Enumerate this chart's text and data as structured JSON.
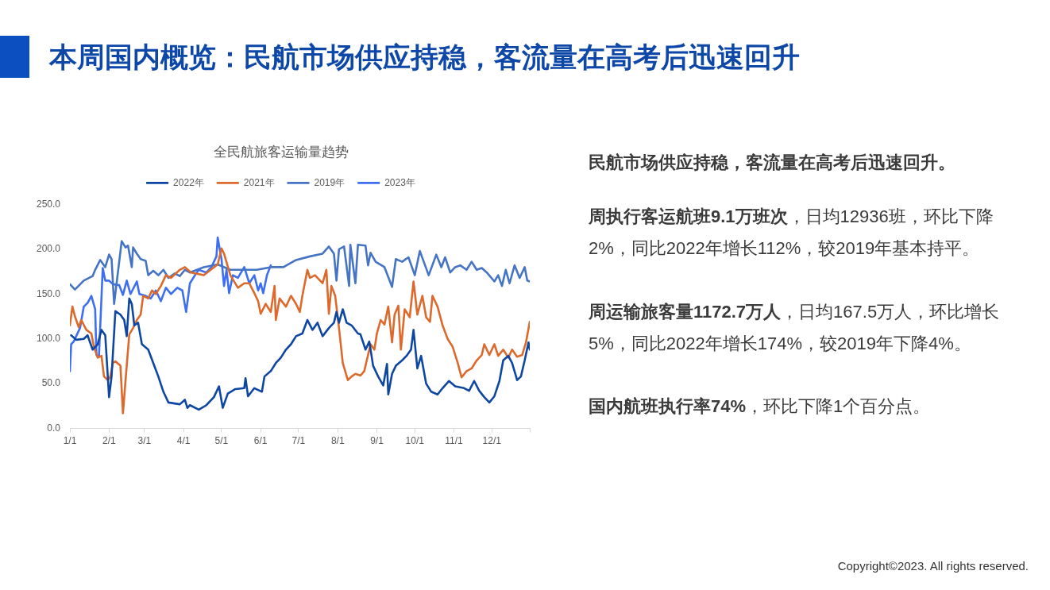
{
  "chart_data": {
    "type": "line",
    "title": "全民航旅客运输量趋势",
    "legend": "top",
    "xlim": [
      "--01-01",
      "--12-31"
    ],
    "xticks": [
      {
        "value": "--01-01",
        "label": "1/1"
      },
      {
        "value": "--02-01",
        "label": "2/1"
      },
      {
        "value": "--03-01",
        "label": "3/1"
      },
      {
        "value": "--04-01",
        "label": "4/1"
      },
      {
        "value": "--05-01",
        "label": "5/1"
      },
      {
        "value": "--06-01",
        "label": "6/1"
      },
      {
        "value": "--07-01",
        "label": "7/1"
      },
      {
        "value": "--08-01",
        "label": "8/1"
      },
      {
        "value": "--09-01",
        "label": "9/1"
      },
      {
        "value": "--10-01",
        "label": "10/1"
      },
      {
        "value": "--11-01",
        "label": "11/1"
      },
      {
        "value": "--12-01",
        "label": "12/1"
      },
      {
        "value": "--12-31",
        "label": null
      }
    ],
    "ylim": [
      0,
      250
    ],
    "yticks": [
      {
        "value": 0,
        "label": "0.0"
      },
      {
        "value": 50,
        "label": "50.0"
      },
      {
        "value": 100,
        "label": "100.0"
      },
      {
        "value": 150,
        "label": "150.0"
      },
      {
        "value": 200,
        "label": "200.0"
      },
      {
        "value": 250,
        "label": "250.0"
      }
    ],
    "series": [
      {
        "name": "2022年",
        "color": "#0e47a1",
        "x": [
          "--01-02",
          "--01-06",
          "--01-12",
          "--01-15",
          "--01-19",
          "--01-23",
          "--01-26",
          "--01-29",
          "--01-31",
          "--02-01",
          "--02-03",
          "--02-06",
          "--02-10",
          "--02-13",
          "--02-15",
          "--02-17",
          "--02-19",
          "--02-21",
          "--02-24",
          "--02-27",
          "--03-04",
          "--03-08",
          "--03-12",
          "--03-16",
          "--03-20",
          "--03-29",
          "--04-02",
          "--04-04",
          "--04-06",
          "--04-13",
          "--04-19",
          "--04-25",
          "--04-29",
          "--05-02",
          "--05-06",
          "--05-12",
          "--05-19",
          "--05-20",
          "--05-22",
          "--05-27",
          "--06-02",
          "--06-04",
          "--06-09",
          "--06-13",
          "--06-17",
          "--06-21",
          "--06-25",
          "--06-29",
          "--07-04",
          "--07-08",
          "--07-12",
          "--07-16",
          "--07-20",
          "--07-25",
          "--07-29",
          "--07-31",
          "--08-02",
          "--08-05",
          "--08-08",
          "--08-12",
          "--08-17",
          "--08-19",
          "--08-23",
          "--08-26",
          "--08-29",
          "--09-02",
          "--09-06",
          "--09-09",
          "--09-10",
          "--09-13",
          "--09-16",
          "--09-21",
          "--09-25",
          "--09-28",
          "--09-30",
          "--10-03",
          "--10-06",
          "--10-10",
          "--10-14",
          "--10-19",
          "--10-23",
          "--10-28",
          "--11-02",
          "--11-09",
          "--11-13",
          "--11-17",
          "--11-21",
          "--11-25",
          "--11-29",
          "--12-03",
          "--12-07",
          "--12-10",
          "--12-14",
          "--12-17",
          "--12-21",
          "--12-24",
          "--12-27",
          "--12-30",
          "--12-31"
        ],
        "values": [
          104,
          99,
          100,
          104,
          88,
          94,
          110,
          104,
          58,
          35,
          58,
          131,
          127,
          121,
          103,
          145,
          139,
          115,
          118,
          94,
          88,
          73,
          58,
          41,
          29,
          27,
          32,
          23,
          26,
          21,
          26,
          35,
          47,
          23,
          39,
          44,
          45,
          56,
          36,
          45,
          41,
          58,
          64,
          73,
          79,
          88,
          94,
          103,
          106,
          121,
          110,
          118,
          103,
          112,
          118,
          130,
          118,
          133,
          118,
          115,
          106,
          105,
          88,
          97,
          70,
          58,
          48,
          72,
          38,
          61,
          70,
          76,
          82,
          88,
          110,
          67,
          81,
          50,
          41,
          38,
          45,
          53,
          47,
          45,
          42,
          53,
          42,
          35,
          29,
          36,
          53,
          76,
          81,
          73,
          54,
          58,
          76,
          96,
          88
        ]
      },
      {
        "name": "2021年",
        "color": "#dd6a2c",
        "x": [
          "--01-01",
          "--01-03",
          "--01-05",
          "--01-08",
          "--01-10",
          "--01-14",
          "--01-18",
          "--01-20",
          "--01-23",
          "--01-26",
          "--01-28",
          "--01-31",
          "--02-02",
          "--02-04",
          "--02-06",
          "--02-10",
          "--02-12",
          "--02-14",
          "--02-17",
          "--02-20",
          "--02-23",
          "--02-26",
          "--02-28",
          "--03-04",
          "--03-07",
          "--03-10",
          "--03-14",
          "--03-18",
          "--03-22",
          "--03-29",
          "--04-02",
          "--04-07",
          "--04-17",
          "--04-28",
          "--05-01",
          "--05-03",
          "--05-08",
          "--05-14",
          "--05-19",
          "--05-23",
          "--05-27",
          "--05-30",
          "--06-01",
          "--06-05",
          "--06-09",
          "--06-12",
          "--06-13",
          "--06-16",
          "--06-21",
          "--06-25",
          "--06-29",
          "--07-02",
          "--07-04",
          "--07-08",
          "--07-10",
          "--07-14",
          "--07-20",
          "--07-23",
          "--07-25",
          "--07-27",
          "--07-30",
          "--08-02",
          "--08-05",
          "--08-09",
          "--08-12",
          "--08-15",
          "--08-19",
          "--08-22",
          "--08-25",
          "--08-27",
          "--08-30",
          "--09-01",
          "--09-04",
          "--09-07",
          "--09-10",
          "--09-13",
          "--09-15",
          "--09-18",
          "--09-20",
          "--09-23",
          "--09-27",
          "--09-30",
          "--10-03",
          "--10-07",
          "--10-10",
          "--10-13",
          "--10-15",
          "--10-19",
          "--10-23",
          "--10-27",
          "--10-31",
          "--11-04",
          "--11-07",
          "--11-11",
          "--11-15",
          "--11-19",
          "--11-23",
          "--11-25",
          "--11-29",
          "--12-03",
          "--12-06",
          "--12-10",
          "--12-14",
          "--12-17",
          "--12-21",
          "--12-25",
          "--12-28",
          "--12-31"
        ],
        "values": [
          115,
          136,
          125,
          113,
          121,
          110,
          106,
          91,
          79,
          81,
          58,
          54,
          58,
          73,
          75,
          70,
          17,
          53,
          105,
          112,
          121,
          127,
          148,
          145,
          154,
          150,
          159,
          171,
          168,
          177,
          180,
          174,
          171,
          183,
          201,
          195,
          171,
          157,
          162,
          162,
          151,
          142,
          128,
          139,
          130,
          159,
          121,
          145,
          136,
          148,
          139,
          130,
          148,
          177,
          168,
          171,
          162,
          177,
          128,
          159,
          148,
          112,
          73,
          54,
          58,
          61,
          59,
          64,
          82,
          94,
          88,
          106,
          121,
          116,
          136,
          96,
          127,
          137,
          88,
          133,
          124,
          164,
          127,
          148,
          124,
          119,
          148,
          136,
          115,
          100,
          91,
          73,
          57,
          64,
          67,
          76,
          82,
          94,
          82,
          94,
          81,
          88,
          79,
          88,
          80,
          82,
          96,
          119
        ]
      },
      {
        "name": "2019年",
        "color": "#4574c4",
        "x": [
          "--01-01",
          "--01-05",
          "--01-12",
          "--01-19",
          "--01-21",
          "--01-25",
          "--01-29",
          "--02-01",
          "--02-03",
          "--02-05",
          "--02-11",
          "--02-14",
          "--02-16",
          "--02-19",
          "--02-20",
          "--02-23",
          "--02-26",
          "--03-02",
          "--03-04",
          "--03-08",
          "--03-12",
          "--03-16",
          "--03-20",
          "--03-25",
          "--03-29",
          "--04-02",
          "--04-06",
          "--04-17",
          "--04-28",
          "--05-08",
          "--05-19",
          "--05-29",
          "--06-09",
          "--06-19",
          "--06-29",
          "--07-10",
          "--07-20",
          "--07-25",
          "--07-29",
          "--07-31",
          "--08-02",
          "--08-06",
          "--08-10",
          "--08-11",
          "--08-15",
          "--08-17",
          "--08-23",
          "--08-25",
          "--08-27",
          "--08-31",
          "--09-07",
          "--09-13",
          "--09-16",
          "--09-21",
          "--09-26",
          "--10-01",
          "--10-05",
          "--10-12",
          "--10-18",
          "--10-22",
          "--10-25",
          "--10-29",
          "--11-02",
          "--11-06",
          "--11-11",
          "--11-15",
          "--11-19",
          "--11-23",
          "--11-27",
          "--12-03",
          "--12-06",
          "--12-09",
          "--12-12",
          "--12-15",
          "--12-19",
          "--12-23",
          "--12-27",
          "--12-29",
          "--12-31"
        ],
        "values": [
          161,
          155,
          165,
          170,
          177,
          188,
          180,
          194,
          189,
          139,
          209,
          202,
          204,
          180,
          202,
          195,
          189,
          187,
          171,
          176,
          171,
          177,
          168,
          173,
          170,
          177,
          174,
          180,
          183,
          177,
          177,
          177,
          180,
          180,
          188,
          192,
          195,
          203,
          195,
          165,
          200,
          203,
          159,
          205,
          162,
          205,
          204,
          182,
          196,
          186,
          180,
          158,
          189,
          186,
          191,
          171,
          198,
          171,
          194,
          180,
          191,
          174,
          180,
          182,
          177,
          186,
          177,
          179,
          174,
          164,
          171,
          159,
          177,
          162,
          182,
          168,
          180,
          165,
          164
        ]
      },
      {
        "name": "2023年",
        "color": "#3d6ff0",
        "x": [
          "--01-01",
          "--01-02",
          "--01-04",
          "--01-09",
          "--01-12",
          "--01-15",
          "--01-18",
          "--01-21",
          "--01-22",
          "--01-24",
          "--01-27",
          "--01-29",
          "--02-01",
          "--02-04",
          "--02-09",
          "--02-12",
          "--02-15",
          "--02-18",
          "--02-23",
          "--02-25",
          "--03-02",
          "--03-06",
          "--03-10",
          "--03-14",
          "--03-18",
          "--03-22",
          "--03-27",
          "--03-31",
          "--04-03",
          "--04-06",
          "--04-10",
          "--04-13",
          "--04-19",
          "--04-23",
          "--04-27",
          "--04-28",
          "--05-01",
          "--05-03",
          "--05-05",
          "--05-07",
          "--05-10",
          "--05-14",
          "--05-19",
          "--05-23",
          "--05-27",
          "--05-30",
          "--06-01",
          "--06-03",
          "--06-06",
          "--06-09"
        ],
        "values": [
          64,
          94,
          97,
          112,
          136,
          140,
          148,
          133,
          82,
          80,
          179,
          165,
          165,
          161,
          160,
          149,
          165,
          150,
          164,
          150,
          148,
          145,
          154,
          142,
          157,
          150,
          157,
          154,
          130,
          162,
          171,
          177,
          174,
          180,
          192,
          213,
          189,
          159,
          177,
          151,
          171,
          168,
          180,
          162,
          171,
          154,
          162,
          151,
          171,
          182
        ]
      }
    ],
    "annotations": [
      "本周国内概览：民航市场供应持稳，客流量在高考后迅速回升",
      "民航市场供应持稳，客流量在高考后迅速回升。",
      "周执行客运航班9.1万班次",
      "，日均12936班，环比下降2%，同比2022年增长112%，较2019年基本持平。",
      "周运输旅客量1172.7万人",
      "，日均167.5万人，环比增长5%，同比2022年增长174%，较2019年下降4%。",
      "国内航班执行率74%",
      "，环比下降1个百分点。",
      "Copyright©2023. All rights reserved."
    ]
  }
}
